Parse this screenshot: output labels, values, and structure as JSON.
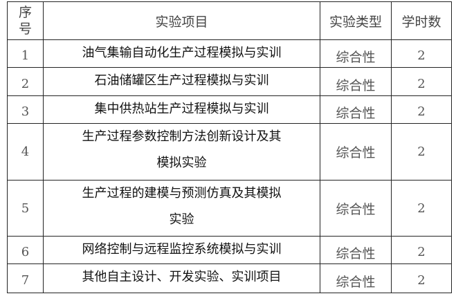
{
  "header": {
    "no": "序\n号",
    "no_line1": "序",
    "no_line2": "号",
    "project": "实验项目",
    "type": "实验类型",
    "hours": "学时数"
  },
  "rows": [
    {
      "no": "1",
      "project": "油气集输自动化生产过程模拟与实训",
      "type": "综合性",
      "hours": "2"
    },
    {
      "no": "2",
      "project": "石油储罐区生产过程模拟与实训",
      "type": "综合性",
      "hours": "2"
    },
    {
      "no": "3",
      "project": "集中供热站生产过程模拟与实训",
      "type": "综合性",
      "hours": "2"
    },
    {
      "no": "4",
      "project": "生产过程参数控制方法创新设计及其模拟实验",
      "project_line1": "生产过程参数控制方法创新设计及其",
      "project_line2": "模拟实验",
      "type": "综合性",
      "hours": "2"
    },
    {
      "no": "5",
      "project": "生产过程的建模与预测仿真及其模拟实验",
      "project_line1": "生产过程的建模与预测仿真及其模拟",
      "project_line2": "实验",
      "type": "综合性",
      "hours": "2"
    },
    {
      "no": "6",
      "project": "网络控制与远程监控系统模拟与实训",
      "type": "综合性",
      "hours": "2"
    },
    {
      "no": "7",
      "project": "其他自主设计、开发实验、实训项目",
      "type": "综合性",
      "hours": "2"
    }
  ]
}
